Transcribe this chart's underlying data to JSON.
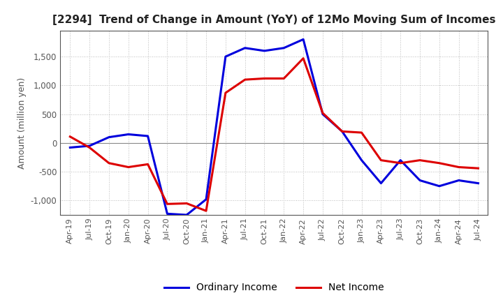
{
  "title": "[2294]  Trend of Change in Amount (YoY) of 12Mo Moving Sum of Incomes",
  "ylabel": "Amount (million yen)",
  "ylim": [
    -1250,
    1950
  ],
  "yticks": [
    -1000,
    -500,
    0,
    500,
    1000,
    1500
  ],
  "background_color": "#ffffff",
  "grid_color": "#bbbbbb",
  "ordinary_income_color": "#0000dd",
  "net_income_color": "#dd0000",
  "x_labels": [
    "Apr-19",
    "Jul-19",
    "Oct-19",
    "Jan-20",
    "Apr-20",
    "Jul-20",
    "Oct-20",
    "Jan-21",
    "Apr-21",
    "Jul-21",
    "Oct-21",
    "Jan-22",
    "Apr-22",
    "Jul-22",
    "Oct-22",
    "Jan-23",
    "Apr-23",
    "Jul-23",
    "Oct-23",
    "Jan-24",
    "Apr-24",
    "Jul-24"
  ],
  "ordinary_income": [
    -80,
    -50,
    100,
    150,
    120,
    -1230,
    -1250,
    -980,
    1500,
    1650,
    1600,
    1650,
    1800,
    500,
    200,
    -300,
    -700,
    -300,
    -650,
    -750,
    -650,
    -700
  ],
  "net_income": [
    110,
    -80,
    -350,
    -420,
    -370,
    -1060,
    -1050,
    -1180,
    870,
    1100,
    1120,
    1120,
    1470,
    520,
    200,
    180,
    -300,
    -350,
    -300,
    -350,
    -420,
    -440
  ]
}
